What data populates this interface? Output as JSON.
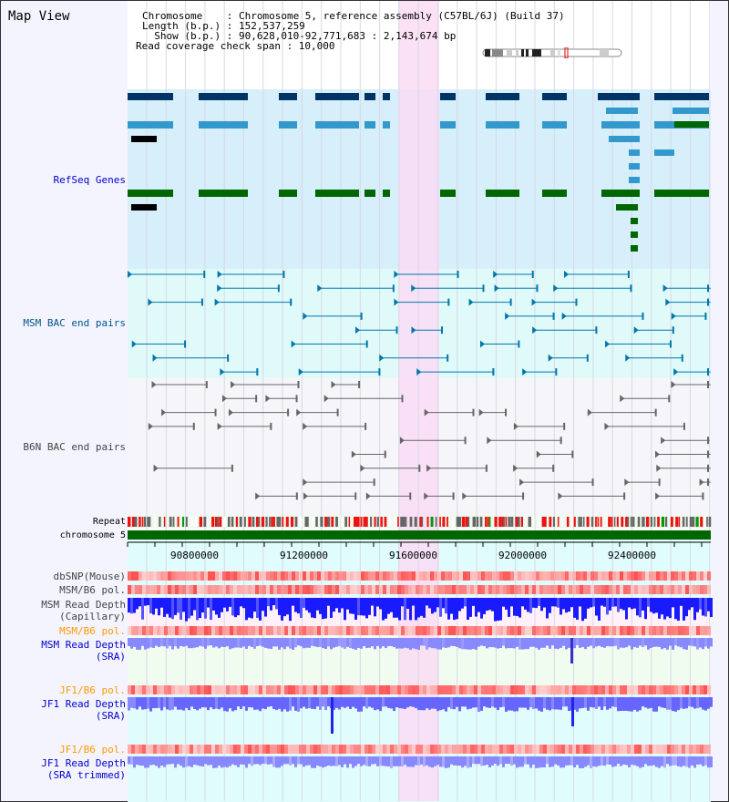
{
  "title": "Map View",
  "info": {
    "chromosome_label": "Chromosome    : Chromosome 5, reference assembly (C57BL/6J) (Build 37)",
    "length_label": "Length (b.p.) : 152,537,259",
    "show_label": "  Show (b.p.) : 90,628,010-92,771,683 : 2,143,674 bp",
    "span_label": "Read coverage check span : 10,000"
  },
  "tracks": {
    "refseq": "RefSeq Genes",
    "msm_bac": "MSM BAC end pairs",
    "b6n_bac": "B6N BAC end pairs",
    "repeat": "Repeat",
    "chromosome": "chromosome 5",
    "dbsnp": "dbSNP(Mouse)",
    "msm_b6_pol": "MSM/B6 pol.",
    "msm_depth_cap": "MSM Read Depth\n(Capillary)",
    "msm_b6_pol2": "MSM/B6 pol.",
    "msm_depth_sra": "MSM Read Depth\n(SRA)",
    "jf1_b6_pol": "JF1/B6 pol.",
    "jf1_depth_sra": "JF1 Read Depth\n(SRA)",
    "jf1_b6_pol2": "JF1/B6 pol.",
    "jf1_depth_trim": "JF1 Read Depth\n(SRA trimmed)"
  },
  "axis": {
    "ticks": [
      "90800000",
      "91200000",
      "91600000",
      "92000000",
      "92400000"
    ]
  },
  "colors": {
    "refseq_dark": "#003366",
    "refseq_light": "#3399cc",
    "gene_green": "#006600",
    "msm_bac": "#0077aa",
    "b6n_bac": "#666666",
    "highlight": "#fadcf5",
    "depth_blue": "#0000ff",
    "depth_light": "#7777ff",
    "orange": "#ff9900",
    "label_blue": "#0000cc"
  }
}
